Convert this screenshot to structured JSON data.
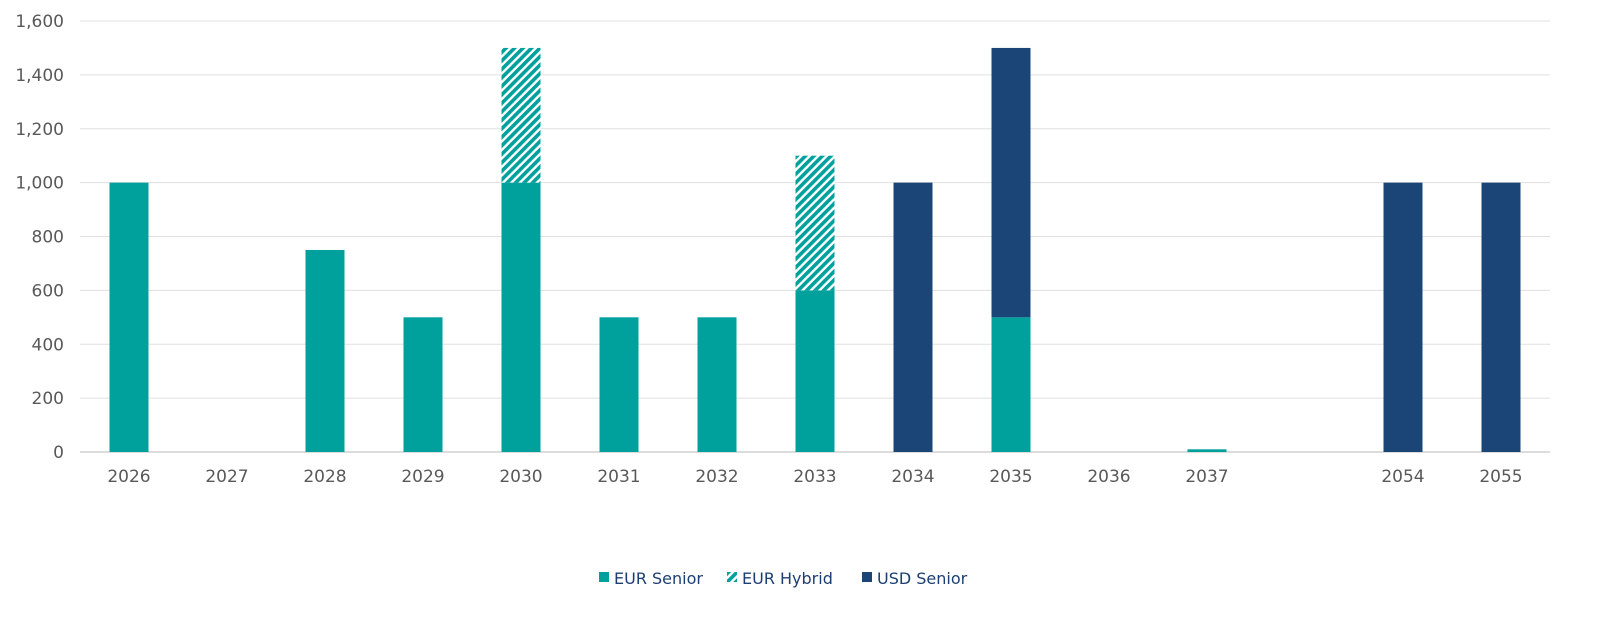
{
  "chart_data": {
    "type": "bar",
    "stacked": true,
    "categories": [
      "2026",
      "2027",
      "2028",
      "2029",
      "2030",
      "2031",
      "2032",
      "2033",
      "2034",
      "2035",
      "2036",
      "2037",
      "",
      "2054",
      "2055"
    ],
    "series": [
      {
        "name": "EUR Senior",
        "color": "#00a19d",
        "pattern": "solid",
        "values": [
          1000,
          0,
          750,
          500,
          1000,
          500,
          500,
          600,
          0,
          500,
          0,
          10,
          0,
          0,
          0
        ]
      },
      {
        "name": "EUR Hybrid",
        "color": "#00a19d",
        "pattern": "diagonal-hatch",
        "values": [
          0,
          0,
          0,
          0,
          500,
          0,
          0,
          500,
          0,
          0,
          0,
          0,
          0,
          0,
          0
        ]
      },
      {
        "name": "USD Senior",
        "color": "#1b4477",
        "pattern": "solid",
        "values": [
          0,
          0,
          0,
          0,
          0,
          0,
          0,
          0,
          1000,
          1000,
          0,
          0,
          0,
          1000,
          1000
        ]
      }
    ],
    "yticks": [
      "0",
      "200",
      "400",
      "600",
      "800",
      "1,000",
      "1,200",
      "1,400",
      "1,600"
    ],
    "ylim": [
      0,
      1600
    ],
    "grid": true,
    "legend_position": "bottom"
  }
}
